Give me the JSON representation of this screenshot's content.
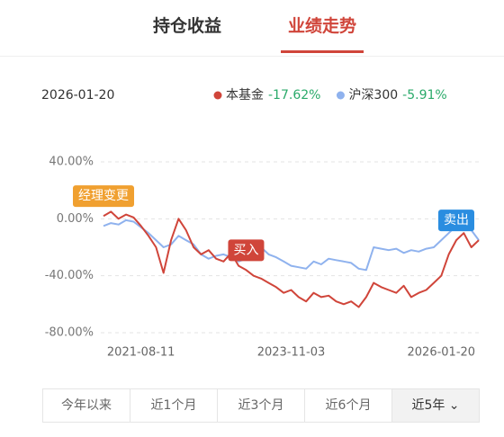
{
  "tabs": [
    "持仓收益",
    "业绩走势"
  ],
  "active_tab": 1,
  "chart_data": {
    "type": "line",
    "date": "2026-01-20",
    "x": [
      0,
      1,
      2,
      3,
      4,
      5,
      6,
      7,
      8,
      9,
      10,
      11,
      12,
      13,
      14,
      15,
      16,
      17,
      18,
      19,
      20,
      21,
      22,
      23,
      24,
      25,
      26,
      27,
      28,
      29,
      30,
      31,
      32,
      33,
      34,
      35,
      36,
      37,
      38,
      39,
      40,
      41,
      42,
      43,
      44,
      45,
      46,
      47,
      48,
      49,
      50
    ],
    "xlim": [
      0,
      50
    ],
    "xticks": [
      {
        "value": 5,
        "label": "2021-08-11"
      },
      {
        "value": 25,
        "label": "2023-11-03"
      },
      {
        "value": 45,
        "label": "2026-01-20"
      }
    ],
    "ylim": [
      -80,
      40
    ],
    "yticks": [
      {
        "value": 40,
        "label": "40.00%"
      },
      {
        "value": 0,
        "label": "0.00%"
      },
      {
        "value": -40,
        "label": "-40.00%"
      },
      {
        "value": -80,
        "label": "-80.00%"
      }
    ],
    "grid": true,
    "series": [
      {
        "name": "本基金",
        "color": "#d0453a",
        "summary": "-17.62%",
        "values": [
          2,
          5,
          0,
          3,
          1,
          -5,
          -12,
          -20,
          -38,
          -15,
          0,
          -8,
          -20,
          -25,
          -22,
          -28,
          -30,
          -24,
          -33,
          -36,
          -40,
          -42,
          -45,
          -48,
          -52,
          -50,
          -55,
          -58,
          -52,
          -55,
          -54,
          -58,
          -60,
          -58,
          -62,
          -55,
          -45,
          -48,
          -50,
          -52,
          -47,
          -55,
          -52,
          -50,
          -45,
          -40,
          -25,
          -15,
          -10,
          -20,
          -15
        ]
      },
      {
        "name": "沪深300",
        "color": "#8fb2ee",
        "summary": "-5.91%",
        "values": [
          -5,
          -3,
          -4,
          -1,
          -2,
          -6,
          -10,
          -15,
          -20,
          -18,
          -12,
          -15,
          -18,
          -25,
          -28,
          -26,
          -25,
          -27,
          -30,
          -28,
          -22,
          -20,
          -25,
          -27,
          -30,
          -33,
          -34,
          -35,
          -30,
          -32,
          -28,
          -29,
          -30,
          -31,
          -35,
          -36,
          -20,
          -21,
          -22,
          -21,
          -24,
          -22,
          -23,
          -21,
          -20,
          -15,
          -10,
          -5,
          -3,
          -8,
          -15
        ]
      }
    ],
    "annotations": [
      {
        "text": "经理变更",
        "x": 0,
        "color": "#f0a030"
      },
      {
        "text": "买入",
        "x": 19,
        "color": "#d0453a"
      },
      {
        "text": "卖出",
        "x": 47,
        "color": "#2a8de0"
      }
    ]
  },
  "range_buttons": [
    "今年以来",
    "近1个月",
    "近3个月",
    "近6个月",
    "近5年"
  ],
  "active_range": 4
}
